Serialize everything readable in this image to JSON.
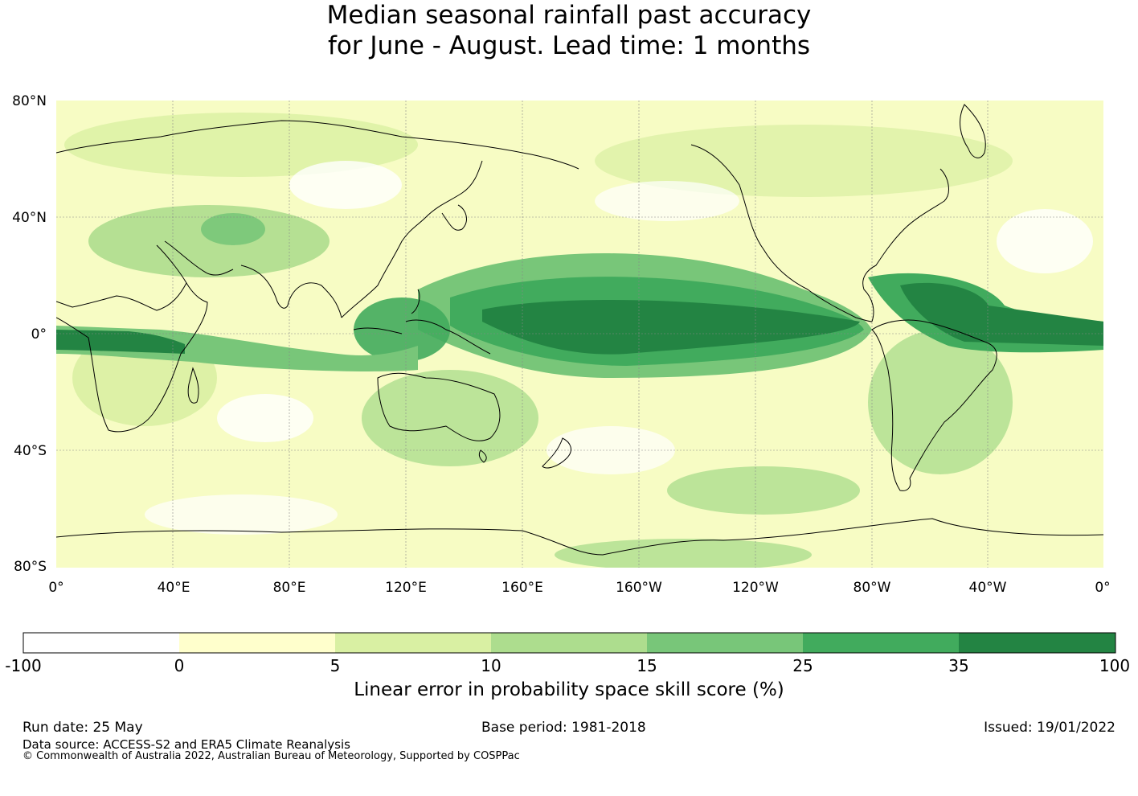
{
  "title": {
    "line1": "Median seasonal rainfall past accuracy",
    "line2": "for June - August. Lead time: 1 months"
  },
  "map": {
    "lat_labels": [
      "80°N",
      "40°N",
      "0°",
      "40°S",
      "80°S"
    ],
    "lon_labels": [
      "0°",
      "40°E",
      "80°E",
      "120°E",
      "160°E",
      "160°W",
      "120°W",
      "80°W",
      "40°W",
      "0°"
    ],
    "land_outline_color": "#000000",
    "gridline_color": "#888888"
  },
  "colorbar": {
    "ticks": [
      "-100",
      "0",
      "5",
      "10",
      "15",
      "25",
      "35",
      "100"
    ],
    "colors": [
      "#ffffff",
      "#ffffcc",
      "#d9f0a3",
      "#addd8e",
      "#78c679",
      "#41ab5d",
      "#238443"
    ],
    "label": "Linear error in probability space skill score (%)"
  },
  "footer": {
    "run_date": "Run date: 25 May",
    "base_period": "Base period: 1981-2018",
    "issued": "Issued: 19/01/2022",
    "data_source": "Data source: ACCESS-S2 and ERA5 Climate Reanalysis",
    "copyright": "© Commonwealth of Australia 2022, Australian Bureau of Meteorology, Supported by COSPPac"
  }
}
